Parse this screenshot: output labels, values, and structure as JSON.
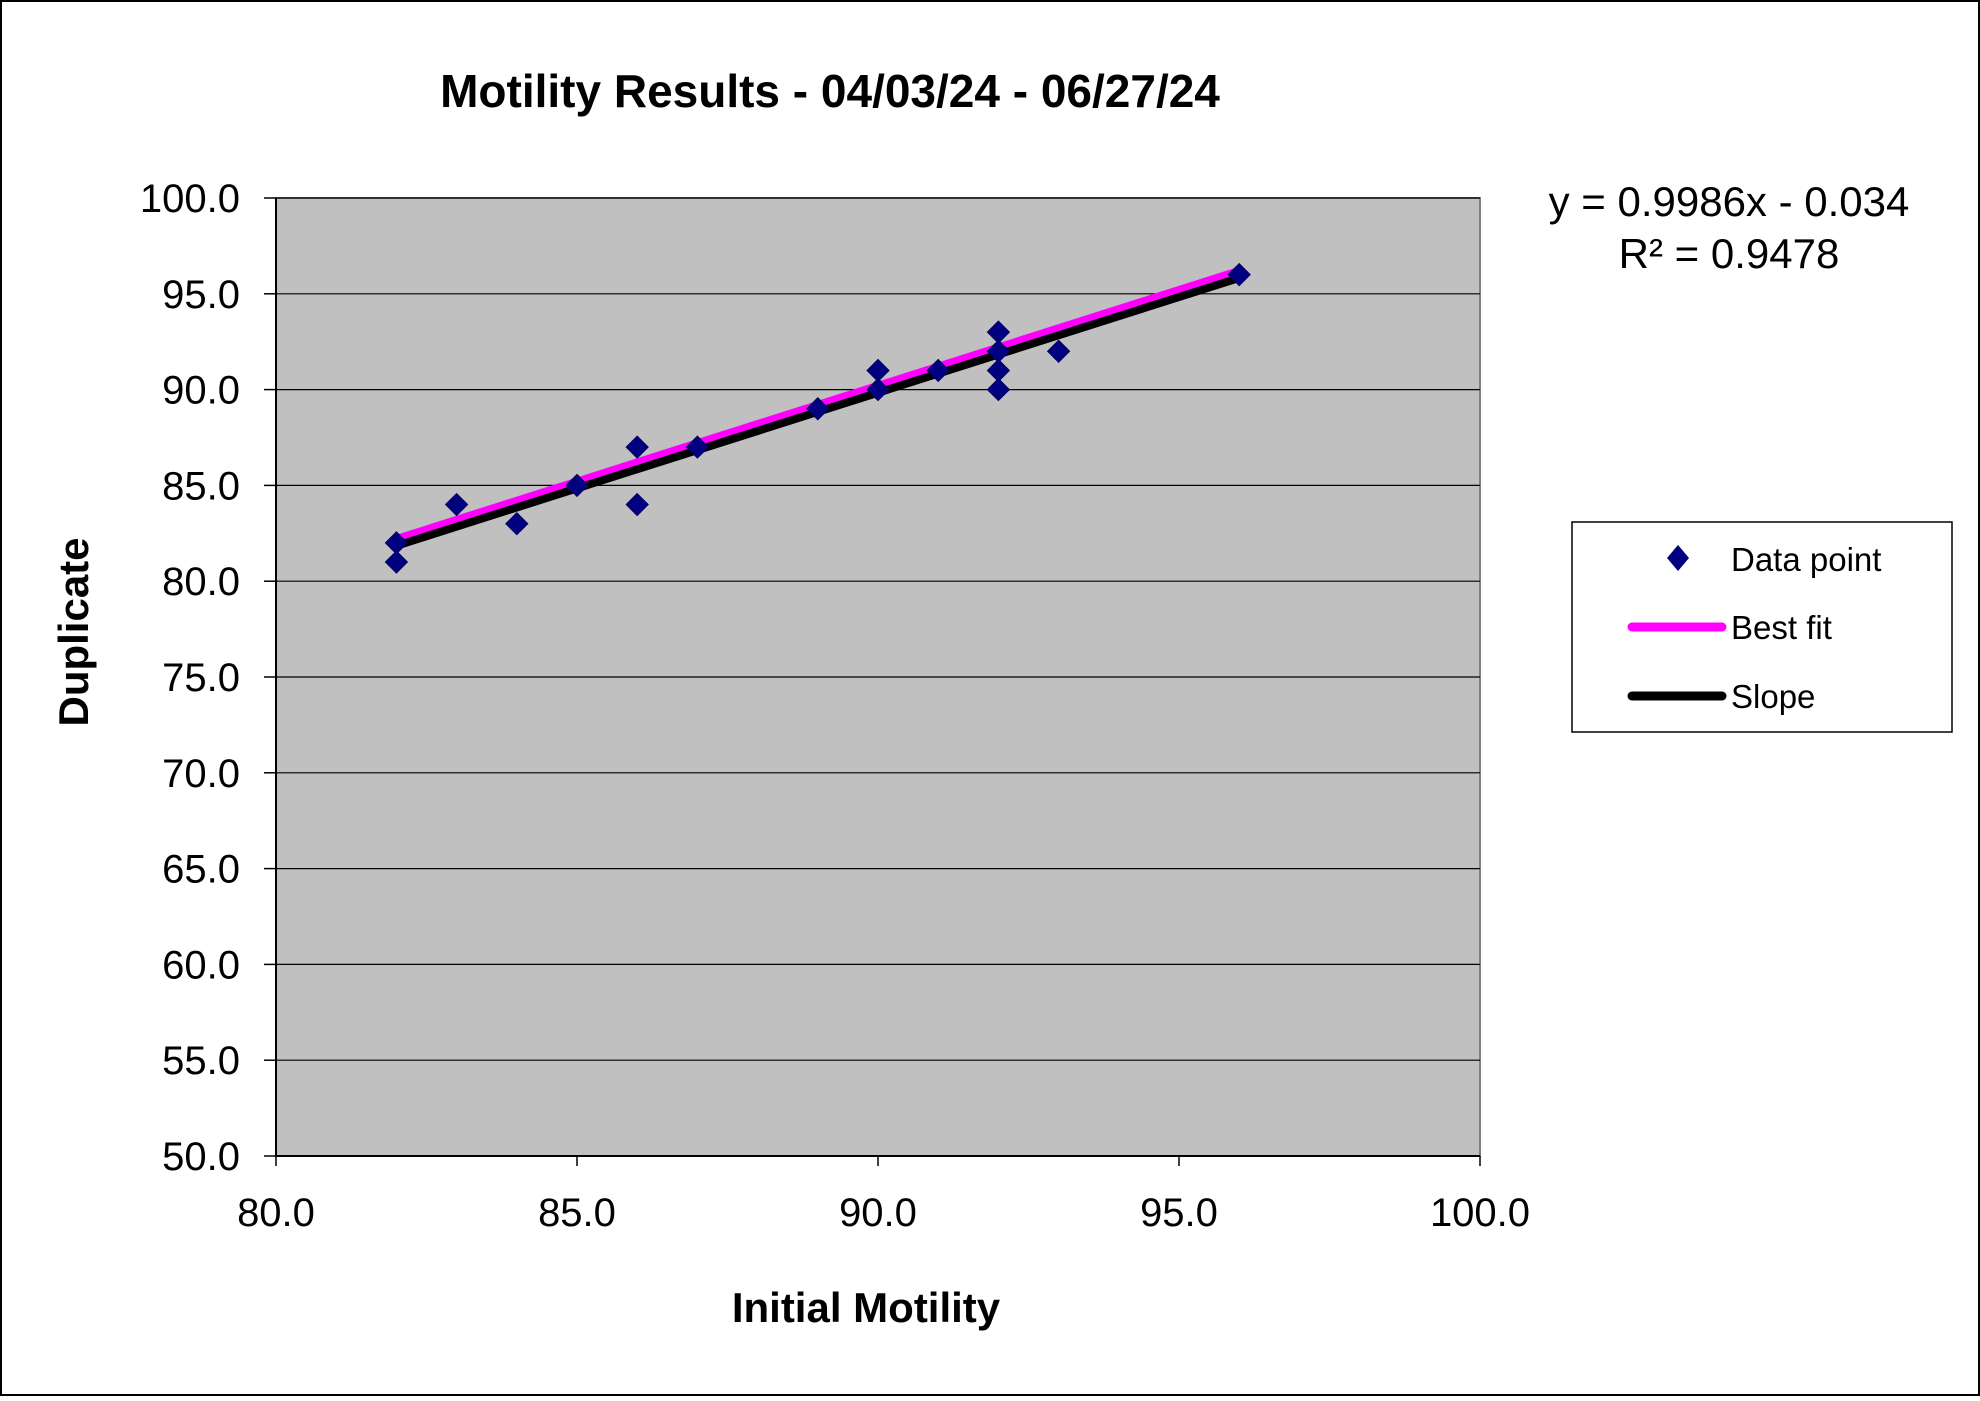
{
  "chart_data": {
    "type": "scatter",
    "title": "Motility Results - 04/03/24 - 06/27/24",
    "xlabel": "Initial Motility",
    "ylabel": "Duplicate",
    "xlim": [
      80.0,
      100.0
    ],
    "ylim": [
      50.0,
      100.0
    ],
    "xticks": [
      "80.0",
      "85.0",
      "90.0",
      "95.0",
      "100.0"
    ],
    "yticks": [
      "100.0",
      "95.0",
      "90.0",
      "85.0",
      "80.0",
      "75.0",
      "70.0",
      "65.0",
      "60.0",
      "55.0",
      "50.0"
    ],
    "grid": "horizontal",
    "plot_background": "#c0c0c0",
    "legend_position": "right",
    "equation_line1": "y = 0.9986x - 0.034",
    "equation_line2": "R² = 0.9478",
    "series": [
      {
        "name": "Data point",
        "kind": "scatter",
        "marker": "diamond",
        "color": "#000080",
        "points": [
          [
            82,
            82
          ],
          [
            82,
            81
          ],
          [
            83,
            84
          ],
          [
            84,
            83
          ],
          [
            85,
            85
          ],
          [
            86,
            87
          ],
          [
            86,
            84
          ],
          [
            87,
            87
          ],
          [
            89,
            89
          ],
          [
            90,
            91
          ],
          [
            90,
            90
          ],
          [
            91,
            91
          ],
          [
            92,
            93
          ],
          [
            92,
            92
          ],
          [
            92,
            91
          ],
          [
            92,
            90
          ],
          [
            93,
            92
          ],
          [
            96,
            96
          ]
        ]
      },
      {
        "name": "Best fit",
        "kind": "line",
        "color": "#ff00ff",
        "points": [
          [
            82,
            82.2
          ],
          [
            96,
            96.2
          ]
        ]
      },
      {
        "name": "Slope",
        "kind": "line",
        "color": "#000000",
        "points": [
          [
            82,
            81.85
          ],
          [
            96,
            95.83
          ]
        ]
      }
    ]
  }
}
